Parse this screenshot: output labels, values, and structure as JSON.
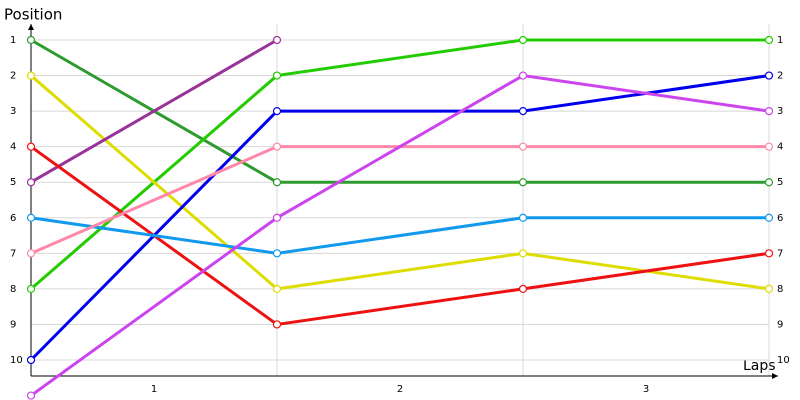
{
  "chart_data": {
    "type": "line",
    "title": "Position",
    "x_label": "Laps",
    "x": [
      0,
      1,
      2,
      3
    ],
    "xlim": [
      0,
      3
    ],
    "xticks": [
      {
        "value": 0.5,
        "label": "1"
      },
      {
        "value": 1.5,
        "label": "2"
      },
      {
        "value": 2.5,
        "label": "3"
      }
    ],
    "ylim": [
      0.55,
      10.45
    ],
    "y_inverted": true,
    "yticks": [
      1,
      2,
      3,
      4,
      5,
      6,
      7,
      8,
      9,
      10
    ],
    "grid": true,
    "series": [
      {
        "color": "#2e9b2e",
        "values": [
          1,
          5,
          5,
          5
        ]
      },
      {
        "color": "#22cc00",
        "values": [
          8,
          2,
          1,
          1
        ]
      },
      {
        "color": "#dddd00",
        "values": [
          2,
          8,
          7,
          8
        ]
      },
      {
        "color": "#993399",
        "values": [
          5,
          1,
          null,
          null
        ]
      },
      {
        "color": "#ee1111",
        "values": [
          4,
          9,
          8,
          7
        ]
      },
      {
        "color": "#0000ee",
        "values": [
          10,
          3,
          3,
          2
        ]
      },
      {
        "color": "#1199ee",
        "values": [
          6,
          7,
          6,
          6
        ]
      },
      {
        "color": "#ff88aa",
        "values": [
          7,
          4,
          4,
          4
        ]
      },
      {
        "color": "#cc44ee",
        "values": [
          11,
          6,
          2,
          3
        ]
      }
    ]
  }
}
